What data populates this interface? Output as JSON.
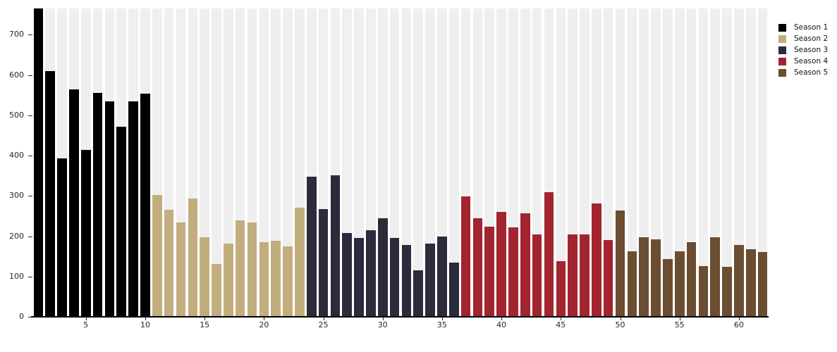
{
  "chart_data": {
    "type": "bar",
    "title": "",
    "xlabel": "",
    "ylabel": "",
    "n_bars": 62,
    "x_range": [
      1,
      62
    ],
    "ylim": [
      0,
      765
    ],
    "y_ticks": [
      0,
      100,
      200,
      300,
      400,
      500,
      600,
      700
    ],
    "x_ticks": [
      5,
      10,
      15,
      20,
      25,
      30,
      35,
      40,
      45,
      50,
      55,
      60
    ],
    "grid": false,
    "legend_position": "top-right",
    "background_bar_color": "#efefef",
    "background_bars_full_height": true,
    "axis_line_color": "#000000",
    "tick_label_color": "#262626",
    "series": [
      {
        "name": "Season 1",
        "color": "#000000",
        "start_episode": 1,
        "values": [
          765,
          610,
          393,
          564,
          414,
          556,
          534,
          472,
          535,
          553
        ]
      },
      {
        "name": "Season 2",
        "color": "#c2ad7e",
        "start_episode": 11,
        "values": [
          302,
          266,
          234,
          294,
          197,
          131,
          181,
          240,
          234,
          185,
          188,
          175,
          270
        ]
      },
      {
        "name": "Season 3",
        "color": "#2c2b3c",
        "start_episode": 24,
        "values": [
          347,
          268,
          351,
          207,
          195,
          215,
          244,
          196,
          178,
          115,
          181,
          200,
          134
        ]
      },
      {
        "name": "Season 4",
        "color": "#a1242f",
        "start_episode": 37,
        "values": [
          298,
          245,
          223,
          261,
          221,
          256,
          205,
          309,
          138,
          204,
          204,
          282,
          190
        ]
      },
      {
        "name": "Season 5",
        "color": "#6b4d31",
        "start_episode": 50,
        "values": [
          264,
          162,
          198,
          193,
          143,
          162,
          186,
          125,
          197,
          124,
          179,
          167,
          160
        ]
      }
    ]
  },
  "legend": {
    "items": [
      {
        "label": "Season 1",
        "color": "#000000"
      },
      {
        "label": "Season 2",
        "color": "#c2ad7e"
      },
      {
        "label": "Season 3",
        "color": "#2c2b3c"
      },
      {
        "label": "Season 4",
        "color": "#a1242f"
      },
      {
        "label": "Season 5",
        "color": "#6b4d31"
      }
    ]
  }
}
